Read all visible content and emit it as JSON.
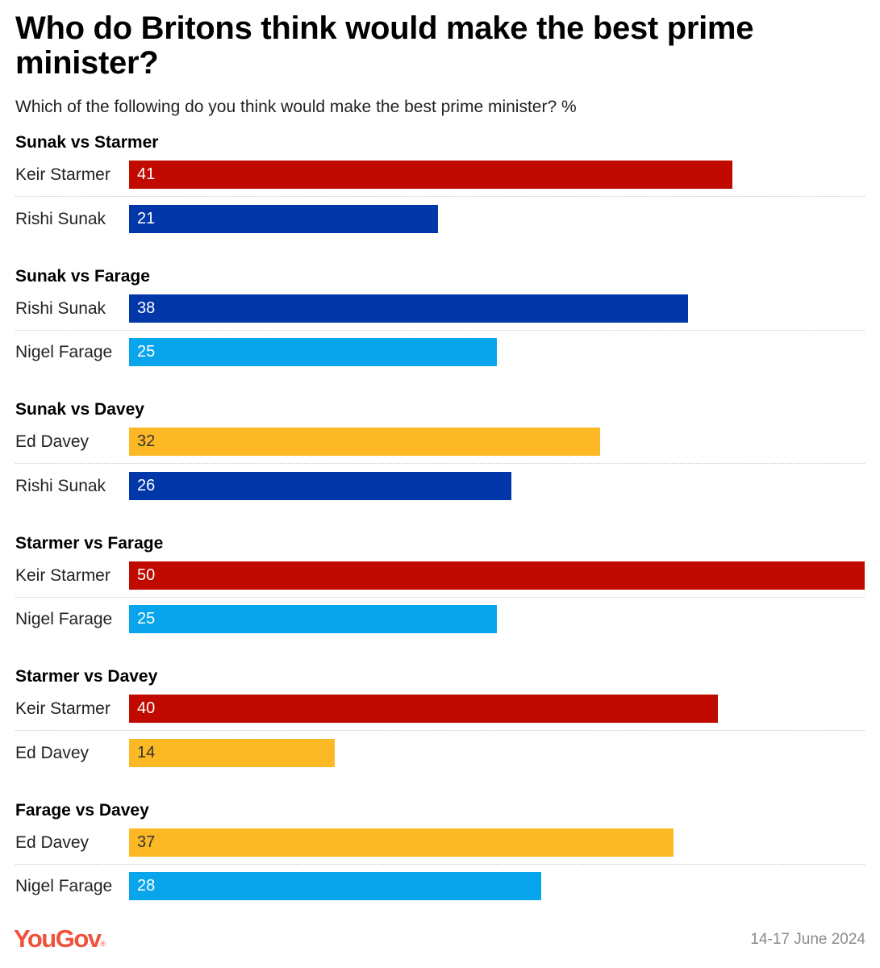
{
  "title": "Who do Britons think would make the best prime minister?",
  "subtitle": "Which of the following do you think would make the best prime minister? %",
  "footer": {
    "logo": "YouGov",
    "date": "14-17 June 2024"
  },
  "colors": {
    "Keir Starmer": "#c00a00",
    "Rishi Sunak": "#0137a8",
    "Nigel Farage": "#08a5ec",
    "Ed Davey": "#fcb925"
  },
  "chart_data": {
    "type": "bar",
    "orientation": "horizontal",
    "xlim": [
      0,
      50
    ],
    "grid": false,
    "groups": [
      {
        "name": "Sunak vs Starmer",
        "rows": [
          {
            "label": "Keir Starmer",
            "value": 41
          },
          {
            "label": "Rishi Sunak",
            "value": 21
          }
        ]
      },
      {
        "name": "Sunak vs Farage",
        "rows": [
          {
            "label": "Rishi Sunak",
            "value": 38
          },
          {
            "label": "Nigel Farage",
            "value": 25
          }
        ]
      },
      {
        "name": "Sunak vs Davey",
        "rows": [
          {
            "label": "Ed Davey",
            "value": 32
          },
          {
            "label": "Rishi Sunak",
            "value": 26
          }
        ]
      },
      {
        "name": "Starmer vs Farage",
        "rows": [
          {
            "label": "Keir Starmer",
            "value": 50
          },
          {
            "label": "Nigel Farage",
            "value": 25
          }
        ]
      },
      {
        "name": "Starmer vs Davey",
        "rows": [
          {
            "label": "Keir Starmer",
            "value": 40
          },
          {
            "label": "Ed Davey",
            "value": 14
          }
        ]
      },
      {
        "name": "Farage vs Davey",
        "rows": [
          {
            "label": "Ed Davey",
            "value": 37
          },
          {
            "label": "Nigel Farage",
            "value": 28
          }
        ]
      }
    ]
  }
}
